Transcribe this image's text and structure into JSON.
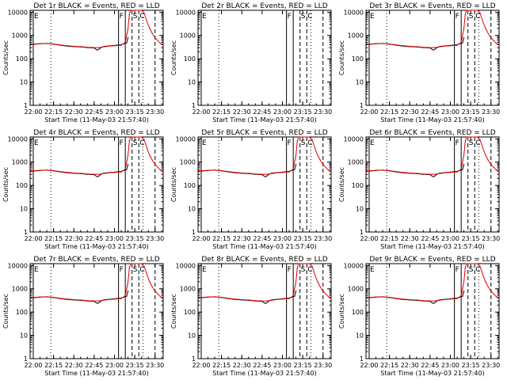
{
  "chart_data": {
    "type": "line",
    "y_scale": "log",
    "ylim": [
      1,
      12000
    ],
    "y_ticks": [
      1,
      10,
      100,
      1000,
      10000
    ],
    "y_tick_labels": [
      "1",
      "10",
      "100",
      "1000",
      "10000"
    ],
    "x_tick_labels": [
      "22:00",
      "22:15",
      "22:30",
      "22:45",
      "23:00",
      "23:15",
      "23:30"
    ],
    "ylabel": "Counts/sec",
    "xlabel": "Start Time (11-May-03 21:57:40)",
    "grid": false,
    "colors": {
      "events": "#000000",
      "lld": "#e00000"
    },
    "markers": {
      "e": "E",
      "f": "F",
      "s": "S",
      "c": "C",
      "l": "L"
    },
    "panels": [
      {
        "title": "Det 1r BLACK = Events, RED = LLD",
        "has_data": true
      },
      {
        "title": "Det 2r BLACK = Events, RED = LLD",
        "has_data": false
      },
      {
        "title": "Det 3r BLACK = Events, RED = LLD",
        "has_data": true
      },
      {
        "title": "Det 4r BLACK = Events, RED = LLD",
        "has_data": true
      },
      {
        "title": "Det 5r BLACK = Events, RED = LLD",
        "has_data": true
      },
      {
        "title": "Det 6r BLACK = Events, RED = LLD",
        "has_data": true
      },
      {
        "title": "Det 7r BLACK = Events, RED = LLD",
        "has_data": true
      },
      {
        "title": "Det 8r BLACK = Events, RED = LLD",
        "has_data": true
      },
      {
        "title": "Det 9r BLACK = Events, RED = LLD",
        "has_data": true
      }
    ],
    "series": [
      {
        "name": "Events",
        "x": [
          "21:58",
          "22:00",
          "22:05",
          "22:10",
          "22:15",
          "22:20",
          "22:25",
          "22:30",
          "22:35",
          "22:40",
          "22:45",
          "22:47",
          "22:48",
          "22:50",
          "22:52",
          "22:53",
          "22:55",
          "23:00",
          "23:05",
          "23:09",
          "23:10"
        ],
        "y": [
          420,
          410,
          440,
          450,
          420,
          380,
          350,
          330,
          320,
          300,
          290,
          240,
          240,
          300,
          330,
          340,
          350,
          370,
          400,
          480,
          800
        ]
      },
      {
        "name": "LLD",
        "x": [
          "21:58",
          "22:00",
          "22:05",
          "22:10",
          "22:15",
          "22:20",
          "22:25",
          "22:30",
          "22:35",
          "22:40",
          "22:45",
          "22:48",
          "22:50",
          "22:55",
          "23:00",
          "23:05",
          "23:08",
          "23:10",
          "23:11",
          "23:12",
          "23:13",
          "23:20",
          "23:22",
          "23:24",
          "23:26",
          "23:28",
          "23:30",
          "23:32",
          "23:34",
          "23:36"
        ],
        "y": [
          430,
          420,
          445,
          455,
          430,
          390,
          360,
          340,
          330,
          310,
          300,
          300,
          310,
          340,
          360,
          380,
          500,
          2000,
          8000,
          12000,
          12000,
          12000,
          9000,
          4000,
          2000,
          1200,
          800,
          600,
          450,
          400
        ]
      }
    ],
    "vlines": [
      {
        "label": "E",
        "time": "22:00",
        "style": "solid"
      },
      {
        "label": "",
        "time": "22:13",
        "style": "dotted"
      },
      {
        "label": "F",
        "time": "23:03",
        "style": "solid"
      },
      {
        "label": "",
        "time": "23:08",
        "style": "solid"
      },
      {
        "label": "S",
        "time": "23:13",
        "style": "dashed"
      },
      {
        "label": "C",
        "time": "23:18",
        "style": "dashed"
      },
      {
        "label": "",
        "time": "23:30",
        "style": "dashed"
      },
      {
        "label": "",
        "time": "23:21",
        "style": "dotted"
      }
    ]
  }
}
